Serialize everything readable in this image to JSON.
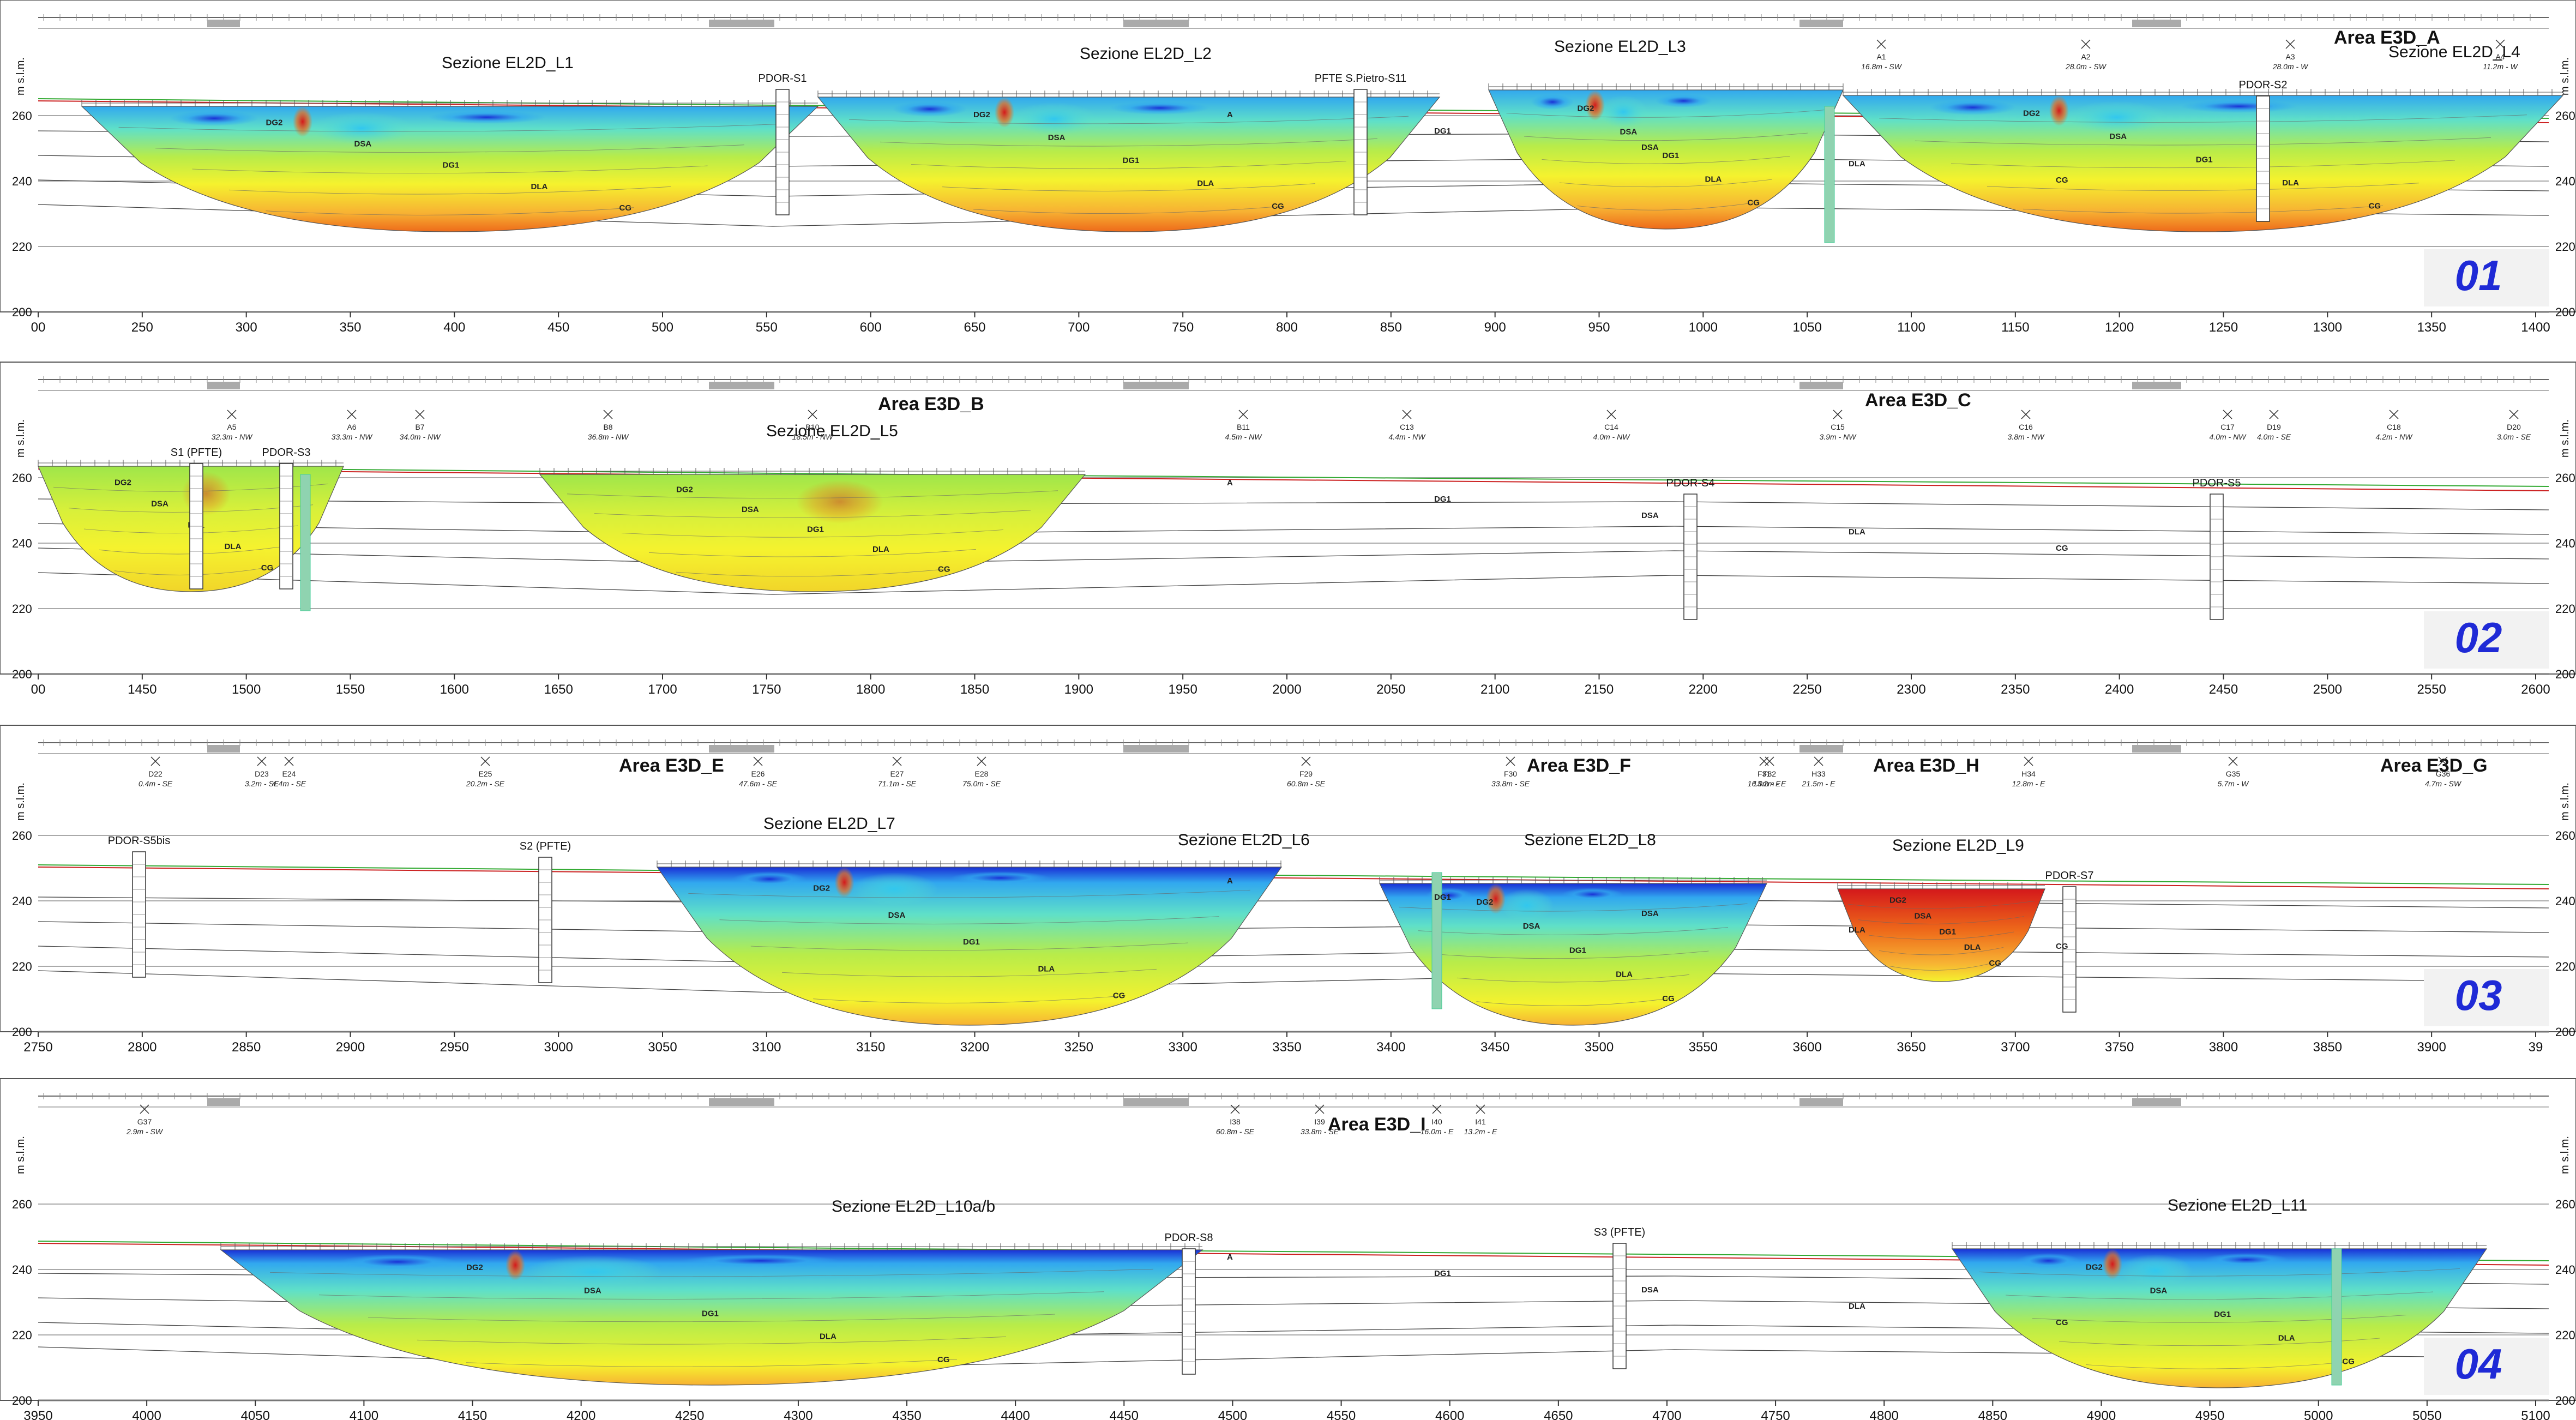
{
  "colors": {
    "panel_number": "#1f2ad6",
    "terrain_line": "#cc2222",
    "ground_line": "#33aa33",
    "borehole_fill": "#ffffff",
    "piezometer": "#8fd3b0",
    "ert_palette": [
      "#1a2fd6",
      "#31a8ef",
      "#5fe0c8",
      "#b7ec4a",
      "#f5f22e",
      "#f7b233",
      "#ee6a1a",
      "#d4181b"
    ]
  },
  "icons": [
    "cross-marker-icon",
    "borehole-log-icon"
  ],
  "geology_units": [
    "A",
    "DG1",
    "DG2",
    "DSA",
    "DLA",
    "CG"
  ],
  "elevation_axis": {
    "unit_label": "m s.l.m.",
    "ticks": [
      "200",
      "220",
      "240",
      "260"
    ]
  },
  "panels": [
    {
      "number": "01",
      "x_ticks": [
        "00",
        "250",
        "300",
        "350",
        "400",
        "450",
        "500",
        "550",
        "600",
        "650",
        "700",
        "750",
        "800",
        "850",
        "900",
        "950",
        "1000",
        "1050",
        "1100",
        "1150",
        "1200",
        "1250",
        "1300",
        "1350",
        "1400"
      ],
      "areas": [
        "Area E3D_A"
      ],
      "sections": [
        "Sezione EL2D_L1",
        "Sezione EL2D_L2",
        "Sezione EL2D_L3",
        "Sezione EL2D_L4"
      ],
      "boreholes": [
        "PDOR-S1",
        "PFTE S.Pietro-S11",
        "PDOR-S2"
      ],
      "points": [
        {
          "id": "A1",
          "dist": "16.8m - SW"
        },
        {
          "id": "A2",
          "dist": "28.0m - SW"
        },
        {
          "id": "A3",
          "dist": "28.0m - W"
        },
        {
          "id": "A4",
          "dist": "11.2m - W"
        }
      ]
    },
    {
      "number": "02",
      "x_ticks": [
        "00",
        "1450",
        "1500",
        "1550",
        "1600",
        "1650",
        "1700",
        "1750",
        "1800",
        "1850",
        "1900",
        "1950",
        "2000",
        "2050",
        "2100",
        "2150",
        "2200",
        "2250",
        "2300",
        "2350",
        "2400",
        "2450",
        "2500",
        "2550",
        "2600"
      ],
      "areas": [
        "Area E3D_B",
        "Area E3D_C"
      ],
      "sections": [
        "Sezione EL2D_L5"
      ],
      "boreholes": [
        "S1 (PFTE)",
        "PDOR-S3",
        "PDOR-S4",
        "PDOR-S5"
      ],
      "points": [
        {
          "id": "A5",
          "dist": "32.3m - NW"
        },
        {
          "id": "A6",
          "dist": "33.3m - NW"
        },
        {
          "id": "B7",
          "dist": "34.0m - NW"
        },
        {
          "id": "B8",
          "dist": "36.8m - NW"
        },
        {
          "id": "B10",
          "dist": "18.5m - NW"
        },
        {
          "id": "B11",
          "dist": "4.5m - NW"
        },
        {
          "id": "C13",
          "dist": "4.4m - NW"
        },
        {
          "id": "C14",
          "dist": "4.0m - NW"
        },
        {
          "id": "C15",
          "dist": "3.9m - NW"
        },
        {
          "id": "C16",
          "dist": "3.8m - NW"
        },
        {
          "id": "C17",
          "dist": "4.0m - NW"
        },
        {
          "id": "D19",
          "dist": "4.0m - SE"
        },
        {
          "id": "C18",
          "dist": "4.2m - NW"
        },
        {
          "id": "D20",
          "dist": "3.0m - SE"
        }
      ]
    },
    {
      "number": "03",
      "x_ticks": [
        "2750",
        "2800",
        "2850",
        "2900",
        "2950",
        "3000",
        "3050",
        "3100",
        "3150",
        "3200",
        "3250",
        "3300",
        "3350",
        "3400",
        "3450",
        "3500",
        "3550",
        "3600",
        "3650",
        "3700",
        "3750",
        "3800",
        "3850",
        "3900",
        "39"
      ],
      "areas": [
        "Area E3D_E",
        "Area E3D_F",
        "Area E3D_H",
        "Area E3D_G"
      ],
      "sections": [
        "Sezione EL2D_L7",
        "Sezione EL2D_L6",
        "Sezione EL2D_L8",
        "Sezione EL2D_L9"
      ],
      "boreholes": [
        "PDOR-S5bis",
        "S2 (PFTE)",
        "PDOR-S7"
      ],
      "points": [
        {
          "id": "D22",
          "dist": "0.4m - SE"
        },
        {
          "id": "D23",
          "dist": "3.2m - SE"
        },
        {
          "id": "E24",
          "dist": "4.4m - SE"
        },
        {
          "id": "E25",
          "dist": "20.2m - SE"
        },
        {
          "id": "E26",
          "dist": "47.6m - SE"
        },
        {
          "id": "E27",
          "dist": "71.1m - SE"
        },
        {
          "id": "E28",
          "dist": "75.0m - SE"
        },
        {
          "id": "F29",
          "dist": "60.8m - SE"
        },
        {
          "id": "F30",
          "dist": "33.8m - SE"
        },
        {
          "id": "F31",
          "dist": "16.0m - E"
        },
        {
          "id": "F32",
          "dist": "13.2m - E"
        },
        {
          "id": "H33",
          "dist": "21.5m - E"
        },
        {
          "id": "H34",
          "dist": "12.8m - E"
        },
        {
          "id": "G35",
          "dist": "5.7m - W"
        },
        {
          "id": "G36",
          "dist": "4.7m - SW"
        }
      ]
    },
    {
      "number": "04",
      "x_ticks": [
        "3950",
        "4000",
        "4050",
        "4100",
        "4150",
        "4200",
        "4250",
        "4300",
        "4350",
        "4400",
        "4450",
        "4500",
        "4550",
        "4600",
        "4650",
        "4700",
        "4750",
        "4800",
        "4850",
        "4900",
        "4950",
        "5000",
        "5050",
        "5100"
      ],
      "areas": [
        "Area E3D_I"
      ],
      "sections": [
        "Sezione EL2D_L10a/b",
        "Sezione EL2D_L11"
      ],
      "boreholes": [
        "PDOR-S8",
        "S3 (PFTE)"
      ],
      "points": [
        {
          "id": "G37",
          "dist": "2.9m - SW"
        },
        {
          "id": "I38",
          "dist": "60.8m - SE"
        },
        {
          "id": "I39",
          "dist": "33.8m - SE"
        },
        {
          "id": "I40",
          "dist": "16.0m - E"
        },
        {
          "id": "I41",
          "dist": "13.2m - E"
        }
      ]
    }
  ]
}
